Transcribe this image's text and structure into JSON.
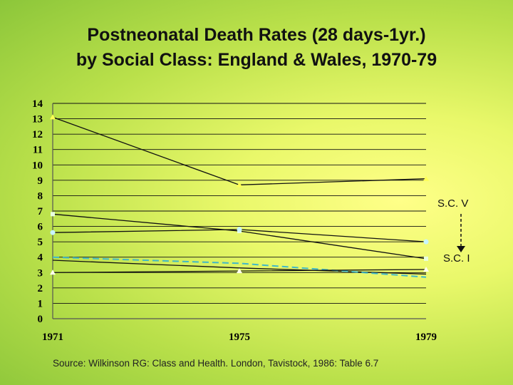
{
  "title_line1": "Postneonatal Death Rates (28 days-1yr.)",
  "title_line2": "by Social Class: England & Wales, 1970-79",
  "source": "Source: Wilkinson RG: Class and Health.  London, Tavistock, 1986: Table 6.7",
  "annotations": {
    "top": "S.C.  V",
    "bottom": "S.C.  I"
  },
  "colors": {
    "gridline": "#111111",
    "axis": "#555555",
    "series_line": "#111111",
    "series_dashed": "#40b8c8",
    "marker_v": "#ffff55",
    "marker_iv": "#e8ffe0",
    "marker_iii": "#c8f5ff",
    "marker_ii": "#e0ffe8",
    "marker_i": "#ffffee",
    "arrow": "#111111"
  },
  "chart_data": {
    "type": "line",
    "x": [
      "1971",
      "1975",
      "1979"
    ],
    "ylim": [
      0,
      14
    ],
    "y_ticks": [
      0,
      1,
      2,
      3,
      4,
      5,
      6,
      7,
      8,
      9,
      10,
      11,
      12,
      13,
      14
    ],
    "grid": "horizontal",
    "series": [
      {
        "values": [
          13.1,
          8.7,
          9.1
        ],
        "style": "solid",
        "marker": "triangle"
      },
      {
        "values": [
          6.8,
          5.7,
          3.9
        ],
        "style": "solid",
        "marker": "square"
      },
      {
        "values": [
          5.6,
          5.8,
          5.0
        ],
        "style": "solid",
        "marker": "circle"
      },
      {
        "values": [
          3.8,
          3.3,
          2.9
        ],
        "style": "solid",
        "marker": "none"
      },
      {
        "values": [
          4.0,
          3.6,
          2.7
        ],
        "style": "dashed",
        "marker": "none"
      },
      {
        "values": [
          3.0,
          3.1,
          3.2
        ],
        "style": "solid",
        "marker": "triangle"
      }
    ]
  }
}
